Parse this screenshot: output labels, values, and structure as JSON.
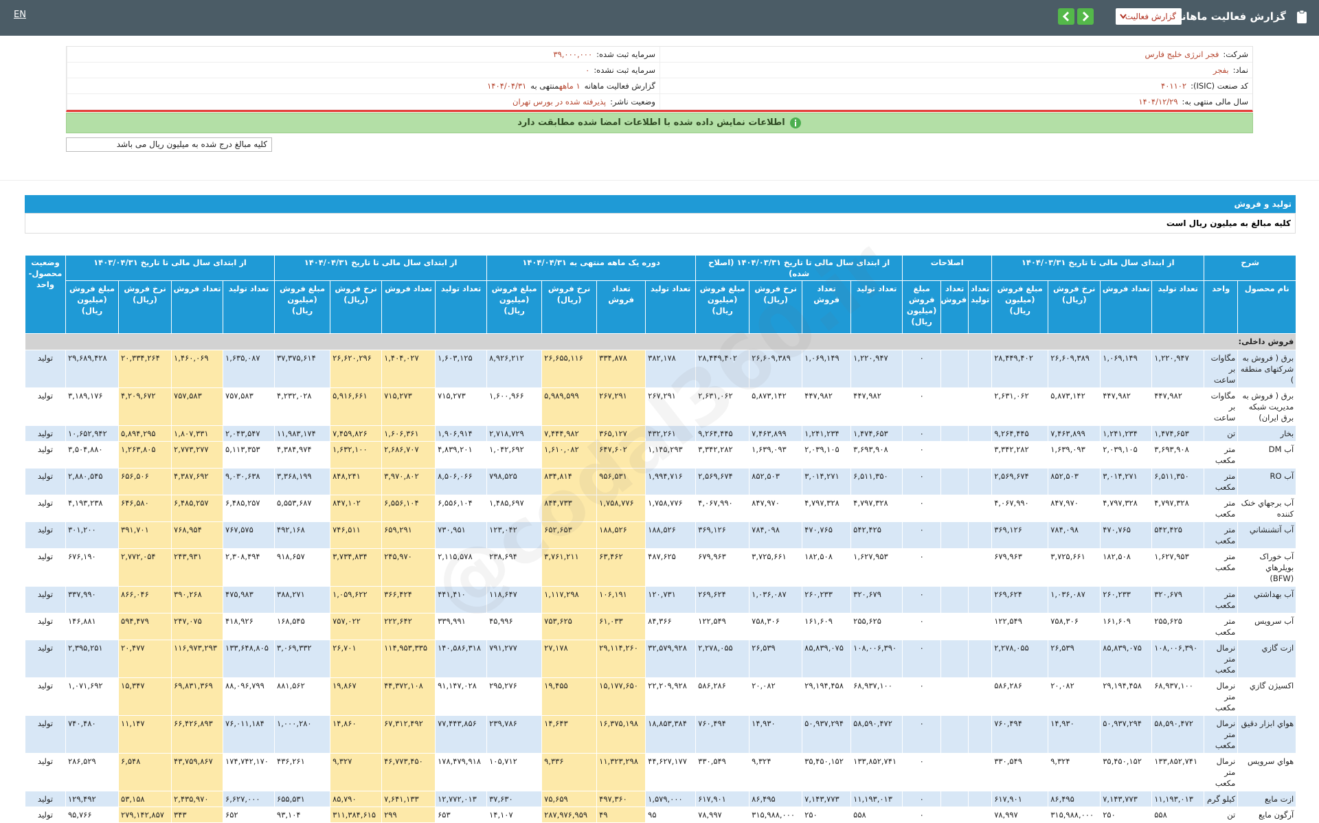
{
  "topbar": {
    "title": "گزارش فعالیت ماهانه",
    "dropdown": "گزارش فعالیت",
    "language": "EN"
  },
  "info": {
    "right": [
      {
        "label": "شرکت:",
        "value": "فجر انرژی خلیج فارس"
      },
      {
        "label": "نماد:",
        "value": "بفجر"
      },
      {
        "label": "کد صنعت (ISIC):",
        "value": "۴۰۱۱۰۲"
      },
      {
        "label": "سال مالی منتهی به:",
        "value": "۱۴۰۴/۱۲/۲۹"
      }
    ],
    "left": [
      {
        "label": "سرمایه ثبت شده:",
        "value": "۳۹,۰۰۰,۰۰۰"
      },
      {
        "label": "سرمایه ثبت نشده:",
        "value": "۰"
      },
      {
        "label": "گزارش فعالیت ماهانه",
        "value": "۱ ماهه",
        "suffix": "منتهی به",
        "suffix_value": "۱۴۰۴/۰۴/۳۱"
      },
      {
        "label": "وضعیت ناشر:",
        "value": "پذیرفته شده در بورس تهران"
      }
    ]
  },
  "notice": "اطلاعات نمایش داده شده با اطلاعات امضا شده مطابقت دارد",
  "amount_note": "کلیه مبالغ درج شده به میلیون ریال می باشد",
  "section": {
    "title": "تولید و فروش",
    "subtitle": "کلیه مبالغ به میلیون ریال است"
  },
  "watermark": "@codal360.ir",
  "table": {
    "groups": [
      {
        "label": "شرح",
        "columns": [
          "نام محصول",
          "واحد"
        ]
      },
      {
        "label": "از ابتدای سال مالی تا تاریخ ۱۴۰۴/۰۳/۳۱",
        "columns": [
          "تعداد تولید",
          "تعداد فروش",
          "نرخ فروش (ریال)",
          "مبلغ فروش (میلیون ریال)"
        ]
      },
      {
        "label": "اصلاحات",
        "columns": [
          "تعداد تولید",
          "تعداد فروش",
          "مبلغ فروش (میلیون ریال)"
        ]
      },
      {
        "label": "از ابتدای سال مالی تا تاریخ ۱۴۰۴/۰۳/۳۱ (اصلاح شده)",
        "columns": [
          "تعداد تولید",
          "تعداد فروش",
          "نرخ فروش (ریال)",
          "مبلغ فروش (میلیون ریال)"
        ]
      },
      {
        "label": "دوره یک ماهه منتهی به ۱۴۰۴/۰۴/۳۱",
        "columns": [
          "تعداد تولید",
          "تعداد فروش",
          "نرخ فروش (ریال)",
          "مبلغ فروش (میلیون ریال)"
        ]
      },
      {
        "label": "از ابتدای سال مالی تا تاریخ ۱۴۰۴/۰۴/۳۱",
        "columns": [
          "تعداد تولید",
          "تعداد فروش",
          "نرخ فروش (ریال)",
          "مبلغ فروش (میلیون ریال)"
        ]
      },
      {
        "label": "از ابتدای سال مالی تا تاریخ ۱۴۰۳/۰۴/۳۱",
        "columns": [
          "تعداد تولید",
          "تعداد فروش",
          "نرخ فروش (ریال)",
          "مبلغ فروش (میلیون ریال)"
        ]
      },
      {
        "label": "وضعیت محصول-واحد"
      }
    ],
    "section_label": "فروش داخلی:",
    "rows": [
      [
        "برق ( فروش به شرکتهای منطقه )",
        "مگاوات بر ساعت",
        "۱,۲۲۰,۹۴۷",
        "۱,۰۶۹,۱۴۹",
        "۲۶,۶۰۹,۳۸۹",
        "۲۸,۴۴۹,۴۰۲",
        null,
        null,
        "۰",
        "۱,۲۲۰,۹۴۷",
        "۱,۰۶۹,۱۴۹",
        "۲۶,۶۰۹,۳۸۹",
        "۲۸,۴۴۹,۴۰۲",
        "۳۸۲,۱۷۸",
        "۳۳۴,۸۷۸",
        "۲۶,۶۵۵,۱۱۶",
        "۸,۹۲۶,۲۱۲",
        "۱,۶۰۳,۱۲۵",
        "۱,۴۰۴,۰۲۷",
        "۲۶,۶۲۰,۲۹۶",
        "۳۷,۳۷۵,۶۱۴",
        "۱,۶۳۵,۰۸۷",
        "۱,۴۶۰,۰۶۹",
        "۲۰,۳۳۴,۲۶۴",
        "۲۹,۶۸۹,۴۲۸",
        "تولید"
      ],
      [
        "برق ( فروش به مدیریت شبکه برق ایران)",
        "مگاوات بر ساعت",
        "۴۴۷,۹۸۲",
        "۴۴۷,۹۸۲",
        "۵,۸۷۳,۱۴۲",
        "۲,۶۳۱,۰۶۲",
        null,
        null,
        "۰",
        "۴۴۷,۹۸۲",
        "۴۴۷,۹۸۲",
        "۵,۸۷۳,۱۴۲",
        "۲,۶۳۱,۰۶۲",
        "۲۶۷,۲۹۱",
        "۲۶۷,۲۹۱",
        "۵,۹۸۹,۵۹۹",
        "۱,۶۰۰,۹۶۶",
        "۷۱۵,۲۷۳",
        "۷۱۵,۲۷۳",
        "۵,۹۱۶,۶۶۱",
        "۴,۲۳۲,۰۲۸",
        "۷۵۷,۵۸۳",
        "۷۵۷,۵۸۳",
        "۴,۲۰۹,۶۷۲",
        "۳,۱۸۹,۱۷۶",
        "تولید"
      ],
      [
        "بخار",
        "تن",
        "۱,۴۷۴,۶۵۳",
        "۱,۲۴۱,۲۳۴",
        "۷,۴۶۳,۸۹۹",
        "۹,۲۶۴,۴۴۵",
        null,
        null,
        "۰",
        "۱,۴۷۴,۶۵۳",
        "۱,۲۴۱,۲۳۴",
        "۷,۴۶۳,۸۹۹",
        "۹,۲۶۴,۴۴۵",
        "۴۳۲,۲۶۱",
        "۳۶۵,۱۲۷",
        "۷,۴۴۴,۹۸۲",
        "۲,۷۱۸,۷۲۹",
        "۱,۹۰۶,۹۱۴",
        "۱,۶۰۶,۳۶۱",
        "۷,۴۵۹,۸۲۶",
        "۱۱,۹۸۳,۱۷۴",
        "۲,۰۴۳,۵۴۷",
        "۱,۸۰۷,۳۳۱",
        "۵,۸۹۴,۲۹۵",
        "۱۰,۶۵۲,۹۴۲",
        "تولید"
      ],
      [
        "آب DM",
        "متر مکعب",
        "۳,۶۹۳,۹۰۸",
        "۲,۰۳۹,۱۰۵",
        "۱,۶۳۹,۰۹۳",
        "۳,۳۴۲,۲۸۲",
        null,
        null,
        "۰",
        "۳,۶۹۳,۹۰۸",
        "۲,۰۳۹,۱۰۵",
        "۱,۶۳۹,۰۹۳",
        "۳,۳۴۲,۲۸۲",
        "۱,۱۴۵,۲۹۳",
        "۶۴۷,۶۰۲",
        "۱,۶۱۰,۰۸۲",
        "۱,۰۴۲,۶۹۲",
        "۴,۸۳۹,۲۰۱",
        "۲,۶۸۶,۷۰۷",
        "۱,۶۳۲,۱۰۰",
        "۴,۳۸۴,۹۷۴",
        "۵,۱۱۳,۳۵۳",
        "۲,۷۷۳,۲۷۷",
        "۱,۲۶۳,۸۰۵",
        "۳,۵۰۴,۸۸۰",
        "تولید"
      ],
      [
        "آب RO",
        "متر مکعب",
        "۶,۵۱۱,۳۵۰",
        "۳,۰۱۴,۲۷۱",
        "۸۵۲,۵۰۳",
        "۲,۵۶۹,۶۷۴",
        null,
        null,
        "۰",
        "۶,۵۱۱,۳۵۰",
        "۳,۰۱۴,۲۷۱",
        "۸۵۲,۵۰۳",
        "۲,۵۶۹,۶۷۴",
        "۱,۹۹۴,۷۱۶",
        "۹۵۶,۵۳۱",
        "۸۳۴,۸۱۴",
        "۷۹۸,۵۲۵",
        "۸,۵۰۶,۰۶۶",
        "۳,۹۷۰,۸۰۲",
        "۸۴۸,۲۴۱",
        "۳,۳۶۸,۱۹۹",
        "۹,۰۳۰,۶۳۸",
        "۴,۳۸۷,۶۹۲",
        "۶۵۶,۵۰۶",
        "۲,۸۸۰,۵۴۵",
        "تولید"
      ],
      [
        "آب برجهاي خنک کننده",
        "متر مکعب",
        "۴,۷۹۷,۳۲۸",
        "۴,۷۹۷,۳۲۸",
        "۸۴۷,۹۷۰",
        "۴,۰۶۷,۹۹۰",
        null,
        null,
        "۰",
        "۴,۷۹۷,۳۲۸",
        "۴,۷۹۷,۳۲۸",
        "۸۴۷,۹۷۰",
        "۴,۰۶۷,۹۹۰",
        "۱,۷۵۸,۷۷۶",
        "۱,۷۵۸,۷۷۶",
        "۸۴۴,۷۳۳",
        "۱,۴۸۵,۶۹۷",
        "۶,۵۵۶,۱۰۴",
        "۶,۵۵۶,۱۰۴",
        "۸۴۷,۱۰۲",
        "۵,۵۵۳,۶۸۷",
        "۶,۴۸۵,۲۵۷",
        "۶,۴۸۵,۲۵۷",
        "۶۴۶,۵۸۰",
        "۴,۱۹۳,۲۳۸",
        "تولید"
      ],
      [
        "آب آتشنشاني",
        "متر مکعب",
        "۵۴۲,۴۲۵",
        "۴۷۰,۷۶۵",
        "۷۸۴,۰۹۸",
        "۳۶۹,۱۲۶",
        null,
        null,
        "۰",
        "۵۴۲,۴۲۵",
        "۴۷۰,۷۶۵",
        "۷۸۴,۰۹۸",
        "۳۶۹,۱۲۶",
        "۱۸۸,۵۲۶",
        "۱۸۸,۵۲۶",
        "۶۵۲,۶۵۳",
        "۱۲۳,۰۴۲",
        "۷۳۰,۹۵۱",
        "۶۵۹,۲۹۱",
        "۷۴۶,۵۱۱",
        "۴۹۲,۱۶۸",
        "۷۶۷,۵۷۵",
        "۷۶۸,۹۵۴",
        "۳۹۱,۷۰۱",
        "۳۰۱,۲۰۰",
        "تولید"
      ],
      [
        "آب خوراک بويلرهاي (BFW)",
        "متر مکعب",
        "۱,۶۲۷,۹۵۳",
        "۱۸۲,۵۰۸",
        "۳,۷۲۵,۶۶۱",
        "۶۷۹,۹۶۳",
        null,
        null,
        "۰",
        "۱,۶۲۷,۹۵۳",
        "۱۸۲,۵۰۸",
        "۳,۷۲۵,۶۶۱",
        "۶۷۹,۹۶۳",
        "۴۸۷,۶۲۵",
        "۶۳,۴۶۲",
        "۳,۷۶۱,۲۱۱",
        "۲۳۸,۶۹۴",
        "۲,۱۱۵,۵۷۸",
        "۲۴۵,۹۷۰",
        "۳,۷۳۴,۸۳۴",
        "۹۱۸,۶۵۷",
        "۲,۳۰۸,۴۹۴",
        "۲۴۳,۹۳۱",
        "۲,۷۷۲,۰۵۴",
        "۶۷۶,۱۹۰",
        "تولید"
      ],
      [
        "آب بهداشتي",
        "متر مکعب",
        "۳۲۰,۶۷۹",
        "۲۶۰,۲۳۳",
        "۱,۰۳۶,۰۸۷",
        "۲۶۹,۶۲۴",
        null,
        null,
        "۰",
        "۳۲۰,۶۷۹",
        "۲۶۰,۲۳۳",
        "۱,۰۳۶,۰۸۷",
        "۲۶۹,۶۲۴",
        "۱۲۰,۷۳۱",
        "۱۰۶,۱۹۱",
        "۱,۱۱۷,۲۹۸",
        "۱۱۸,۶۴۷",
        "۴۴۱,۴۱۰",
        "۳۶۶,۴۲۴",
        "۱,۰۵۹,۶۲۲",
        "۳۸۸,۲۷۱",
        "۴۷۵,۹۸۳",
        "۳۹۰,۲۶۸",
        "۸۶۶,۰۴۶",
        "۳۳۷,۹۹۰",
        "تولید"
      ],
      [
        "آب سرويس",
        "متر مکعب",
        "۲۵۵,۶۲۵",
        "۱۶۱,۶۰۹",
        "۷۵۸,۳۰۶",
        "۱۲۲,۵۴۹",
        null,
        null,
        "۰",
        "۲۵۵,۶۲۵",
        "۱۶۱,۶۰۹",
        "۷۵۸,۳۰۶",
        "۱۲۲,۵۴۹",
        "۸۴,۳۶۶",
        "۶۱,۰۳۳",
        "۷۵۳,۶۲۵",
        "۴۵,۹۹۶",
        "۳۳۹,۹۹۱",
        "۲۲۲,۶۴۲",
        "۷۵۷,۰۲۲",
        "۱۶۸,۵۴۵",
        "۴۱۸,۹۲۶",
        "۲۴۷,۰۷۵",
        "۵۹۴,۴۷۹",
        "۱۴۶,۸۸۱",
        "تولید"
      ],
      [
        "ازت گازي",
        "نرمال متر مکعب",
        "۱۰۸,۰۰۶,۳۹۰",
        "۸۵,۸۳۹,۰۷۵",
        "۲۶,۵۳۹",
        "۲,۲۷۸,۰۵۵",
        null,
        null,
        "۰",
        "۱۰۸,۰۰۶,۳۹۰",
        "۸۵,۸۳۹,۰۷۵",
        "۲۶,۵۳۹",
        "۲,۲۷۸,۰۵۵",
        "۳۲,۵۷۹,۹۲۸",
        "۲۹,۱۱۴,۲۶۰",
        "۲۷,۱۷۸",
        "۷۹۱,۲۷۷",
        "۱۴۰,۵۸۶,۳۱۸",
        "۱۱۴,۹۵۳,۳۳۵",
        "۲۶,۷۰۱",
        "۳,۰۶۹,۳۳۲",
        "۱۳۳,۶۴۸,۸۰۵",
        "۱۱۶,۹۷۳,۲۹۳",
        "۲۰,۴۷۷",
        "۲,۳۹۵,۲۵۱",
        "تولید"
      ],
      [
        "اکسيژن گازي",
        "نرمال متر مکعب",
        "۶۸,۹۳۷,۱۰۰",
        "۲۹,۱۹۴,۴۵۸",
        "۲۰,۰۸۲",
        "۵۸۶,۲۸۶",
        null,
        null,
        "۰",
        "۶۸,۹۳۷,۱۰۰",
        "۲۹,۱۹۴,۴۵۸",
        "۲۰,۰۸۲",
        "۵۸۶,۲۸۶",
        "۲۲,۲۰۹,۹۲۸",
        "۱۵,۱۷۷,۶۵۰",
        "۱۹,۴۵۵",
        "۲۹۵,۲۷۶",
        "۹۱,۱۴۷,۰۲۸",
        "۴۴,۳۷۲,۱۰۸",
        "۱۹,۸۶۷",
        "۸۸۱,۵۶۲",
        "۸۸,۰۹۶,۷۹۹",
        "۶۹,۸۳۱,۳۶۹",
        "۱۵,۳۴۷",
        "۱,۰۷۱,۶۹۲",
        "تولید"
      ],
      [
        "هواي ابزار دقيق",
        "نرمال متر مکعب",
        "۵۸,۵۹۰,۴۷۲",
        "۵۰,۹۳۷,۲۹۴",
        "۱۴,۹۳۰",
        "۷۶۰,۴۹۴",
        null,
        null,
        "۰",
        "۵۸,۵۹۰,۴۷۲",
        "۵۰,۹۳۷,۲۹۴",
        "۱۴,۹۳۰",
        "۷۶۰,۴۹۴",
        "۱۸,۸۵۳,۳۸۴",
        "۱۶,۳۷۵,۱۹۸",
        "۱۴,۶۴۳",
        "۲۳۹,۷۸۶",
        "۷۷,۴۴۳,۸۵۶",
        "۶۷,۳۱۲,۴۹۲",
        "۱۴,۸۶۰",
        "۱,۰۰۰,۲۸۰",
        "۷۶,۰۱۱,۱۸۴",
        "۶۶,۴۲۶,۸۹۳",
        "۱۱,۱۴۷",
        "۷۴۰,۴۸۰",
        "تولید"
      ],
      [
        "هواي سرويس",
        "نرمال متر مکعب",
        "۱۳۳,۸۵۲,۷۴۱",
        "۳۵,۴۵۰,۱۵۲",
        "۹,۳۲۴",
        "۳۳۰,۵۴۹",
        null,
        null,
        "۰",
        "۱۳۳,۸۵۲,۷۴۱",
        "۳۵,۴۵۰,۱۵۲",
        "۹,۳۲۴",
        "۳۳۰,۵۴۹",
        "۴۴,۶۲۷,۱۷۷",
        "۱۱,۳۲۳,۲۹۸",
        "۹,۳۳۶",
        "۱۰۵,۷۱۲",
        "۱۷۸,۴۷۹,۹۱۸",
        "۴۶,۷۷۳,۴۵۰",
        "۹,۳۲۷",
        "۴۳۶,۲۶۱",
        "۱۷۴,۷۴۲,۱۷۰",
        "۴۳,۷۵۹,۸۶۷",
        "۶,۵۴۸",
        "۲۸۶,۵۲۹",
        "تولید"
      ],
      [
        "ازت مايع",
        "کيلو گرم",
        "۱۱,۱۹۳,۰۱۳",
        "۷,۱۴۳,۷۷۳",
        "۸۶,۴۹۵",
        "۶۱۷,۹۰۱",
        null,
        null,
        "۰",
        "۱۱,۱۹۳,۰۱۳",
        "۷,۱۴۳,۷۷۳",
        "۸۶,۴۹۵",
        "۶۱۷,۹۰۱",
        "۱,۵۷۹,۰۰۰",
        "۴۹۷,۳۶۰",
        "۷۵,۶۵۹",
        "۳۷,۶۳۰",
        "۱۲,۷۷۲,۰۱۳",
        "۷,۶۴۱,۱۳۳",
        "۸۵,۷۹۰",
        "۶۵۵,۵۳۱",
        "۶,۶۲۷,۰۰۰",
        "۲,۴۳۵,۹۷۰",
        "۵۳,۱۵۸",
        "۱۲۹,۴۹۲",
        "تولید"
      ],
      [
        "آرگون مايع",
        "تن",
        "۵۵۸",
        "۲۵۰",
        "۳۱۵,۹۸۸,۰۰۰",
        "۷۸,۹۹۷",
        null,
        null,
        "۰",
        "۵۵۸",
        "۲۵۰",
        "۳۱۵,۹۸۸,۰۰۰",
        "۷۸,۹۹۷",
        "۹۵",
        "۴۹",
        "۲۸۷,۹۷۶,۹۵۹",
        "۱۴,۱۰۷",
        "۶۵۳",
        "۲۹۹",
        "۳۱۱,۳۸۴,۶۱۵",
        "۹۳,۱۰۴",
        "۶۵۲",
        "۳۴۳",
        "۲۷۹,۱۴۲,۸۵۷",
        "۹۵,۷۶۶",
        "تولید"
      ]
    ]
  }
}
